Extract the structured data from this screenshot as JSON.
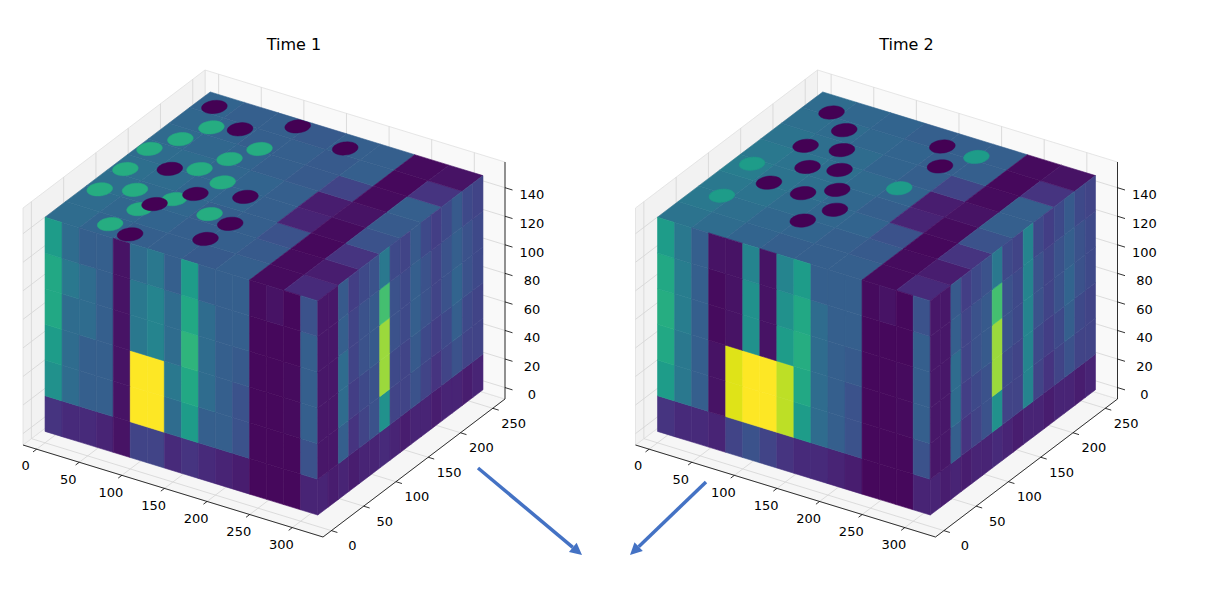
{
  "chart_data": [
    {
      "type": "volume",
      "title": "Time 1",
      "xlim": [
        -16,
        336
      ],
      "ylim": [
        -13,
        269
      ],
      "zlim": [
        -8,
        158
      ],
      "xticks": [
        0,
        50,
        100,
        150,
        200,
        250,
        300
      ],
      "yticks": [
        0,
        50,
        100,
        150,
        200,
        250
      ],
      "zticks": [
        0,
        20,
        40,
        60,
        80,
        100,
        120,
        140
      ],
      "grid": true,
      "extent": {
        "x": [
          0,
          320
        ],
        "y": [
          0,
          256
        ],
        "z": [
          0,
          150
        ]
      },
      "vlim": [
        0,
        1
      ],
      "top": [
        [
          0.35,
          0.32,
          0.3,
          0.3,
          0.28,
          0.3,
          0.03,
          0.12
        ],
        [
          0.35,
          0.33,
          0.32,
          0.3,
          0.3,
          0.28,
          0.03,
          0.08
        ],
        [
          0.36,
          0.34,
          0.33,
          0.3,
          0.3,
          0.25,
          0.02,
          0.15
        ],
        [
          0.36,
          0.35,
          0.33,
          0.32,
          0.3,
          0.1,
          0.03,
          0.25
        ],
        [
          0.35,
          0.35,
          0.33,
          0.32,
          0.3,
          0.08,
          0.05,
          0.28
        ],
        [
          0.34,
          0.33,
          0.32,
          0.3,
          0.28,
          0.2,
          0.03,
          0.3
        ],
        [
          0.33,
          0.32,
          0.3,
          0.3,
          0.28,
          0.3,
          0.02,
          0.15
        ],
        [
          0.32,
          0.3,
          0.3,
          0.28,
          0.3,
          0.3,
          0.03,
          0.05
        ]
      ],
      "front": [
        [
          0.15,
          0.12,
          0.12,
          0.1,
          0.05,
          0.2,
          0.2,
          0.12,
          0.15,
          0.12,
          0.1,
          0.08,
          0.02,
          0.02,
          0.02,
          0.1
        ],
        [
          0.5,
          0.35,
          0.3,
          0.3,
          0.05,
          1.0,
          1.0,
          0.35,
          0.55,
          0.3,
          0.3,
          0.25,
          0.02,
          0.02,
          0.02,
          0.25
        ],
        [
          0.55,
          0.35,
          0.3,
          0.3,
          0.05,
          1.0,
          1.0,
          0.4,
          0.6,
          0.35,
          0.3,
          0.25,
          0.02,
          0.02,
          0.03,
          0.3
        ],
        [
          0.6,
          0.35,
          0.35,
          0.3,
          0.05,
          0.4,
          0.45,
          0.35,
          0.65,
          0.35,
          0.3,
          0.28,
          0.02,
          0.02,
          0.03,
          0.3
        ],
        [
          0.6,
          0.4,
          0.35,
          0.3,
          0.05,
          0.4,
          0.45,
          0.35,
          0.6,
          0.35,
          0.3,
          0.3,
          0.02,
          0.02,
          0.02,
          0.3
        ],
        [
          0.55,
          0.35,
          0.3,
          0.3,
          0.05,
          0.35,
          0.4,
          0.3,
          0.55,
          0.3,
          0.3,
          0.3,
          0.03,
          0.05,
          0.02,
          0.25
        ]
      ],
      "side": [
        [
          0.1,
          0.08,
          0.1,
          0.08,
          0.1,
          0.1,
          0.12,
          0.1,
          0.08,
          0.1,
          0.1,
          0.08,
          0.1,
          0.1,
          0.08,
          0.1
        ],
        [
          0.06,
          0.06,
          0.3,
          0.15,
          0.2,
          0.25,
          0.5,
          0.2,
          0.2,
          0.25,
          0.2,
          0.15,
          0.2,
          0.25,
          0.2,
          0.2
        ],
        [
          0.06,
          0.06,
          0.35,
          0.18,
          0.22,
          0.25,
          0.85,
          0.22,
          0.2,
          0.28,
          0.22,
          0.18,
          0.22,
          0.3,
          0.22,
          0.2
        ],
        [
          0.06,
          0.06,
          0.35,
          0.2,
          0.25,
          0.28,
          0.85,
          0.25,
          0.22,
          0.3,
          0.25,
          0.2,
          0.25,
          0.32,
          0.25,
          0.22
        ],
        [
          0.06,
          0.06,
          0.3,
          0.2,
          0.25,
          0.28,
          0.7,
          0.25,
          0.22,
          0.3,
          0.25,
          0.2,
          0.25,
          0.3,
          0.25,
          0.22
        ],
        [
          0.06,
          0.06,
          0.28,
          0.18,
          0.22,
          0.25,
          0.4,
          0.22,
          0.2,
          0.28,
          0.22,
          0.18,
          0.22,
          0.28,
          0.22,
          0.2
        ]
      ],
      "spots": [
        {
          "x": 15,
          "y": 65,
          "r": 12,
          "value": 0.62
        },
        {
          "x": 14,
          "y": 106,
          "r": 12,
          "value": 0.62
        },
        {
          "x": 12,
          "y": 146,
          "r": 12,
          "value": 0.62
        },
        {
          "x": 70,
          "y": 54,
          "r": 12,
          "value": 0.62
        },
        {
          "x": 88,
          "y": 84,
          "r": 12,
          "value": 0.62
        },
        {
          "x": 76,
          "y": 139,
          "r": 12,
          "value": 0.62
        },
        {
          "x": 90,
          "y": 167,
          "r": 12,
          "value": 0.62
        },
        {
          "x": 104,
          "y": 195,
          "r": 12,
          "value": 0.62
        },
        {
          "x": 27,
          "y": 174,
          "r": 12,
          "value": 0.62
        },
        {
          "x": 62,
          "y": 19,
          "r": 12,
          "value": 0.62
        },
        {
          "x": 134,
          "y": 78,
          "r": 12,
          "value": 0.62
        },
        {
          "x": 40,
          "y": 205,
          "r": 12,
          "value": 0.62
        },
        {
          "x": 110,
          "y": 130,
          "r": 12,
          "value": 0.62
        },
        {
          "x": 45,
          "y": 80,
          "r": 12,
          "value": 0.62
        },
        {
          "x": 20,
          "y": 236,
          "r": 12,
          "value": 0.0
        },
        {
          "x": 66,
          "y": 215,
          "r": 12,
          "value": 0.0
        },
        {
          "x": 51,
          "y": 126,
          "r": 12,
          "value": 0.0
        },
        {
          "x": 100,
          "y": 101,
          "r": 12,
          "value": 0.0
        },
        {
          "x": 90,
          "y": 13,
          "r": 12,
          "value": 0.0
        },
        {
          "x": 158,
          "y": 40,
          "r": 12,
          "value": 0.0
        },
        {
          "x": 145,
          "y": 119,
          "r": 12,
          "value": 0.0
        },
        {
          "x": 175,
          "y": 234,
          "r": 12,
          "value": 0.0
        },
        {
          "x": 111,
          "y": 245,
          "r": 12,
          "value": 0.0
        },
        {
          "x": 77,
          "y": 68,
          "r": 12,
          "value": 0.0
        },
        {
          "x": 162,
          "y": 73,
          "r": 12,
          "value": 0.0
        }
      ]
    },
    {
      "type": "volume",
      "title": "Time 2",
      "xlim": [
        -16,
        336
      ],
      "ylim": [
        -13,
        269
      ],
      "zlim": [
        -8,
        158
      ],
      "xticks": [
        0,
        50,
        100,
        150,
        200,
        250,
        300
      ],
      "yticks": [
        0,
        50,
        100,
        150,
        200,
        250
      ],
      "zticks": [
        0,
        20,
        40,
        60,
        80,
        100,
        120,
        140
      ],
      "grid": true,
      "extent": {
        "x": [
          0,
          320
        ],
        "y": [
          0,
          256
        ],
        "z": [
          0,
          150
        ]
      },
      "vlim": [
        0,
        1
      ],
      "top": [
        [
          0.38,
          0.35,
          0.32,
          0.3,
          0.3,
          0.3,
          0.03,
          0.12
        ],
        [
          0.4,
          0.36,
          0.33,
          0.32,
          0.3,
          0.28,
          0.03,
          0.08
        ],
        [
          0.4,
          0.38,
          0.35,
          0.33,
          0.32,
          0.25,
          0.02,
          0.15
        ],
        [
          0.42,
          0.38,
          0.36,
          0.33,
          0.3,
          0.1,
          0.03,
          0.25
        ],
        [
          0.4,
          0.38,
          0.36,
          0.34,
          0.32,
          0.08,
          0.05,
          0.3
        ],
        [
          0.38,
          0.36,
          0.35,
          0.32,
          0.3,
          0.2,
          0.03,
          0.3
        ],
        [
          0.36,
          0.35,
          0.33,
          0.32,
          0.3,
          0.3,
          0.02,
          0.15
        ],
        [
          0.35,
          0.33,
          0.32,
          0.3,
          0.3,
          0.3,
          0.03,
          0.05
        ]
      ],
      "front": [
        [
          0.15,
          0.12,
          0.12,
          0.1,
          0.2,
          0.25,
          0.2,
          0.15,
          0.12,
          0.12,
          0.1,
          0.08,
          0.02,
          0.02,
          0.02,
          0.1
        ],
        [
          0.55,
          0.4,
          0.3,
          0.05,
          0.95,
          1.0,
          1.0,
          0.9,
          0.55,
          0.35,
          0.3,
          0.25,
          0.02,
          0.02,
          0.02,
          0.25
        ],
        [
          0.6,
          0.4,
          0.3,
          0.05,
          0.95,
          1.0,
          1.0,
          0.9,
          0.6,
          0.35,
          0.3,
          0.25,
          0.02,
          0.02,
          0.03,
          0.3
        ],
        [
          0.62,
          0.42,
          0.3,
          0.03,
          0.05,
          0.5,
          0.05,
          0.55,
          0.62,
          0.35,
          0.3,
          0.28,
          0.02,
          0.02,
          0.03,
          0.3
        ],
        [
          0.6,
          0.42,
          0.3,
          0.03,
          0.05,
          0.5,
          0.05,
          0.5,
          0.6,
          0.35,
          0.3,
          0.3,
          0.02,
          0.02,
          0.02,
          0.3
        ],
        [
          0.55,
          0.4,
          0.3,
          0.05,
          0.05,
          0.45,
          0.05,
          0.45,
          0.55,
          0.3,
          0.3,
          0.3,
          0.03,
          0.05,
          0.02,
          0.25
        ]
      ],
      "side": [
        [
          0.1,
          0.08,
          0.1,
          0.08,
          0.1,
          0.1,
          0.12,
          0.1,
          0.08,
          0.1,
          0.1,
          0.08,
          0.1,
          0.1,
          0.08,
          0.1
        ],
        [
          0.06,
          0.06,
          0.3,
          0.15,
          0.2,
          0.25,
          0.5,
          0.2,
          0.2,
          0.45,
          0.2,
          0.15,
          0.2,
          0.25,
          0.2,
          0.2
        ],
        [
          0.06,
          0.06,
          0.35,
          0.18,
          0.22,
          0.25,
          0.85,
          0.22,
          0.2,
          0.45,
          0.22,
          0.18,
          0.22,
          0.3,
          0.22,
          0.2
        ],
        [
          0.06,
          0.06,
          0.35,
          0.2,
          0.25,
          0.28,
          0.85,
          0.25,
          0.22,
          0.45,
          0.25,
          0.2,
          0.25,
          0.32,
          0.25,
          0.22
        ],
        [
          0.06,
          0.06,
          0.3,
          0.2,
          0.25,
          0.28,
          0.7,
          0.25,
          0.22,
          0.45,
          0.25,
          0.2,
          0.25,
          0.3,
          0.25,
          0.22
        ],
        [
          0.06,
          0.06,
          0.28,
          0.18,
          0.22,
          0.25,
          0.4,
          0.22,
          0.2,
          0.45,
          0.22,
          0.18,
          0.22,
          0.28,
          0.22,
          0.2
        ]
      ],
      "spots": [
        {
          "x": 20,
          "y": 120,
          "r": 12,
          "value": 0.55
        },
        {
          "x": 30,
          "y": 60,
          "r": 12,
          "value": 0.55
        },
        {
          "x": 170,
          "y": 150,
          "r": 12,
          "value": 0.55
        },
        {
          "x": 200,
          "y": 230,
          "r": 12,
          "value": 0.55
        },
        {
          "x": 30,
          "y": 230,
          "r": 12,
          "value": 0.0
        },
        {
          "x": 60,
          "y": 210,
          "r": 12,
          "value": 0.0
        },
        {
          "x": 45,
          "y": 170,
          "r": 12,
          "value": 0.0
        },
        {
          "x": 80,
          "y": 180,
          "r": 12,
          "value": 0.0
        },
        {
          "x": 100,
          "y": 150,
          "r": 12,
          "value": 0.0
        },
        {
          "x": 70,
          "y": 140,
          "r": 12,
          "value": 0.0
        },
        {
          "x": 120,
          "y": 120,
          "r": 12,
          "value": 0.0
        },
        {
          "x": 95,
          "y": 100,
          "r": 12,
          "value": 0.0
        },
        {
          "x": 140,
          "y": 90,
          "r": 12,
          "value": 0.0
        },
        {
          "x": 160,
          "y": 230,
          "r": 12,
          "value": 0.0
        },
        {
          "x": 180,
          "y": 200,
          "r": 12,
          "value": 0.0
        },
        {
          "x": 55,
          "y": 100,
          "r": 12,
          "value": 0.0
        },
        {
          "x": 125,
          "y": 60,
          "r": 12,
          "value": 0.0
        }
      ]
    }
  ]
}
